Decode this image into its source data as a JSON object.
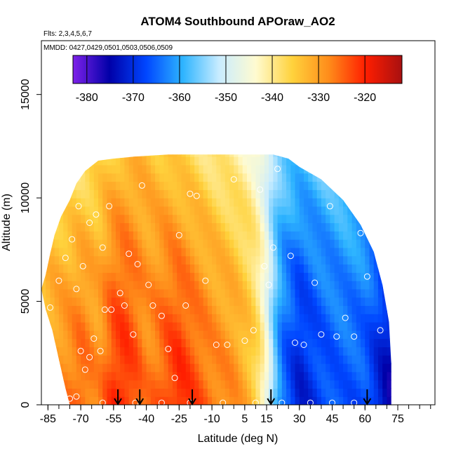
{
  "chart_data": {
    "type": "heatmap",
    "title": "ATOM4 Southbound APOraw_AO2",
    "flights_note": "Flts: 2,3,4,5,6,7",
    "mmdd_note": "MMDD: 0427,0429,0501,0503,0506,0509",
    "xlabel": "Latitude (deg N)",
    "ylabel": "Altitude (m)",
    "xlim": [
      -88,
      92
    ],
    "ylim": [
      0,
      17600
    ],
    "x_ticks": [
      -85,
      -70,
      -55,
      -40,
      -25,
      -10,
      5,
      15,
      30,
      45,
      60,
      75
    ],
    "y_ticks": [
      0,
      5000,
      10000,
      15000
    ],
    "colorbar": {
      "range": [
        -383,
        -312
      ],
      "ticks": [
        -380,
        -370,
        -360,
        -350,
        -340,
        -330,
        -320
      ],
      "colors": [
        "#7e21e9",
        "#0000a8",
        "#0046ff",
        "#2db4ff",
        "#c9ecff",
        "#fffbd0",
        "#ffd23c",
        "#ff8c1a",
        "#ff1e00",
        "#a81010"
      ]
    },
    "outline": [
      [
        -88,
        5600
      ],
      [
        -86,
        6300
      ],
      [
        -84,
        7300
      ],
      [
        -82,
        8200
      ],
      [
        -79,
        9100
      ],
      [
        -75,
        9900
      ],
      [
        -72,
        10700
      ],
      [
        -68,
        11300
      ],
      [
        -62,
        11800
      ],
      [
        -55,
        11900
      ],
      [
        -45,
        12000
      ],
      [
        -30,
        12100
      ],
      [
        -15,
        12100
      ],
      [
        0,
        12100
      ],
      [
        10,
        12100
      ],
      [
        18,
        12100
      ],
      [
        25,
        11900
      ],
      [
        30,
        11500
      ],
      [
        40,
        10900
      ],
      [
        50,
        9900
      ],
      [
        58,
        8700
      ],
      [
        64,
        7400
      ],
      [
        68,
        5800
      ],
      [
        71,
        4000
      ],
      [
        72,
        2000
      ],
      [
        72,
        0
      ],
      [
        -75,
        0
      ],
      [
        -77,
        800
      ],
      [
        -80,
        2200
      ],
      [
        -83,
        3600
      ],
      [
        -86,
        4600
      ]
    ],
    "field_profile": {
      "latitudes": [
        -88,
        -75,
        -70,
        -62,
        -55,
        -50,
        -45,
        -40,
        -35,
        -30,
        -25,
        -20,
        -10,
        0,
        8,
        12,
        15,
        18,
        22,
        30,
        40,
        50,
        60,
        70,
        75
      ],
      "low_values": [
        -330,
        -326,
        -324,
        -328,
        -321,
        -320,
        -323,
        -327,
        -325,
        -322,
        -320,
        -322,
        -326,
        -328,
        -333,
        -338,
        -345,
        -355,
        -365,
        -372,
        -368,
        -366,
        -367,
        -375,
        -377
      ],
      "high_values": [
        -338,
        -340,
        -339,
        -337,
        -334,
        -333,
        -333,
        -333,
        -334,
        -334,
        -336,
        -337,
        -339,
        -341,
        -343,
        -346,
        -350,
        -354,
        -356,
        -357,
        -356,
        -356,
        -356,
        -356,
        -356
      ]
    },
    "observation_points": [
      [
        -75,
        300
      ],
      [
        -72,
        400
      ],
      [
        -70,
        2600
      ],
      [
        -68,
        1700
      ],
      [
        -66,
        2300
      ],
      [
        -64,
        3200
      ],
      [
        -61,
        2600
      ],
      [
        -59,
        4600
      ],
      [
        -56,
        4600
      ],
      [
        -72,
        5600
      ],
      [
        -69,
        6700
      ],
      [
        -66,
        8800
      ],
      [
        -63,
        9200
      ],
      [
        -60,
        7600
      ],
      [
        -57,
        9600
      ],
      [
        -52,
        5400
      ],
      [
        -50,
        4800
      ],
      [
        -48,
        7300
      ],
      [
        -46,
        3400
      ],
      [
        -44,
        6800
      ],
      [
        -42,
        10600
      ],
      [
        -39,
        5800
      ],
      [
        -37,
        4800
      ],
      [
        -33,
        4300
      ],
      [
        -30,
        2700
      ],
      [
        -27,
        1300
      ],
      [
        -25,
        8200
      ],
      [
        -22,
        4800
      ],
      [
        -20,
        10200
      ],
      [
        -17,
        10100
      ],
      [
        -13,
        6000
      ],
      [
        -8,
        2900
      ],
      [
        -3,
        2900
      ],
      [
        0,
        10900
      ],
      [
        5,
        3100
      ],
      [
        9,
        3600
      ],
      [
        12,
        10400
      ],
      [
        14,
        6700
      ],
      [
        16,
        5800
      ],
      [
        18,
        7600
      ],
      [
        20,
        11400
      ],
      [
        26,
        7200
      ],
      [
        28,
        3000
      ],
      [
        32,
        2900
      ],
      [
        37,
        5900
      ],
      [
        40,
        3400
      ],
      [
        44,
        9600
      ],
      [
        47,
        3300
      ],
      [
        51,
        4200
      ],
      [
        55,
        3300
      ],
      [
        58,
        8300
      ],
      [
        61,
        6200
      ],
      [
        67,
        3600
      ],
      [
        -84,
        4700
      ],
      [
        -80,
        6000
      ],
      [
        -77,
        7100
      ],
      [
        -74,
        8000
      ],
      [
        -71,
        9600
      ],
      [
        -33,
        100
      ],
      [
        -20,
        100
      ],
      [
        -5,
        100
      ],
      [
        10,
        100
      ],
      [
        22,
        100
      ],
      [
        35,
        100
      ],
      [
        45,
        100
      ],
      [
        55,
        100
      ],
      [
        -60,
        100
      ],
      [
        -45,
        100
      ]
    ],
    "arrows_latitude": [
      -53,
      -43,
      -19,
      17,
      61
    ]
  }
}
